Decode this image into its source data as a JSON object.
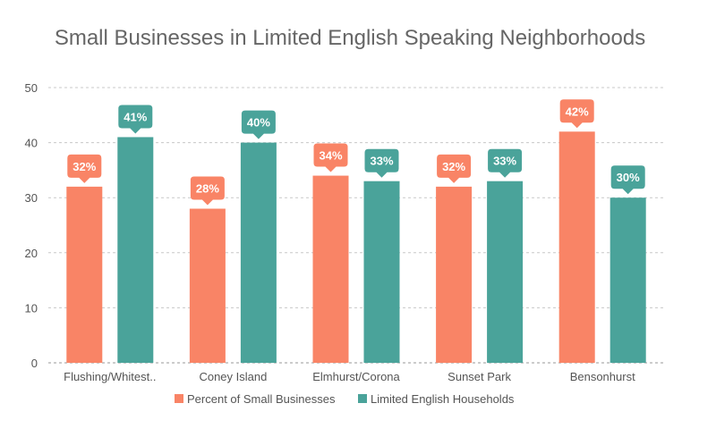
{
  "chart_data": {
    "type": "bar",
    "title": "Small Businesses in Limited English Speaking Neighborhoods",
    "categories": [
      "Flushing/Whitest..",
      "Coney Island",
      "Elmhurst/Corona",
      "Sunset Park",
      "Bensonhurst"
    ],
    "series": [
      {
        "name": "Percent of Small Businesses",
        "values": [
          32,
          28,
          34,
          32,
          42
        ],
        "color": "#F98466"
      },
      {
        "name": "Limited English Households",
        "values": [
          41,
          40,
          33,
          33,
          30
        ],
        "color": "#4AA39A"
      }
    ],
    "data_labels": [
      [
        "32%",
        "28%",
        "34%",
        "32%",
        "42%"
      ],
      [
        "41%",
        "40%",
        "33%",
        "33%",
        "30%"
      ]
    ],
    "ylim": [
      0,
      50
    ],
    "yticks": [
      "0",
      "10",
      "20",
      "30",
      "40",
      "50"
    ],
    "grid": true,
    "legend_position": "bottom"
  }
}
